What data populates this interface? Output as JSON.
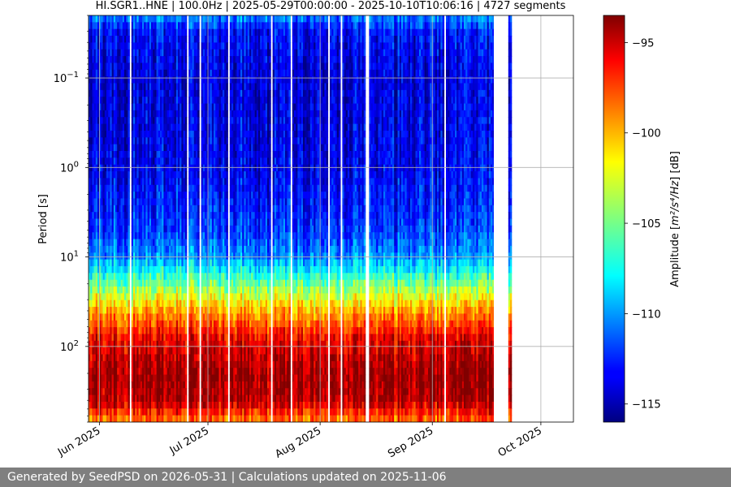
{
  "footer": {
    "text": "Generated by SeedPSD on 2026-05-31 | Calculations updated on 2025-11-06"
  },
  "chart_data": {
    "type": "heatmap",
    "title": "HI.SGR1..HNE | 100.0Hz | 2025-05-29T00:00:00 - 2025-10-10T10:06:16 | 4727 segments",
    "xlabel": "",
    "ylabel": "Period [s]",
    "x_scale": "time",
    "y_scale": "log",
    "y_inverted": true,
    "xlim": [
      "2025-05-29",
      "2025-10-10"
    ],
    "ylim_period_s": [
      0.02,
      700
    ],
    "x_ticks": [
      {
        "date": "2025-06-01",
        "label": "Jun 2025"
      },
      {
        "date": "2025-07-01",
        "label": "Jul 2025"
      },
      {
        "date": "2025-08-01",
        "label": "Aug 2025"
      },
      {
        "date": "2025-09-01",
        "label": "Sep 2025"
      },
      {
        "date": "2025-10-01",
        "label": "Oct 2025"
      }
    ],
    "y_ticks": [
      {
        "value": 0.1,
        "base": "10",
        "exp": "−1"
      },
      {
        "value": 1,
        "base": "10",
        "exp": "0"
      },
      {
        "value": 10,
        "base": "10",
        "exp": "1"
      },
      {
        "value": 100,
        "base": "10",
        "exp": "2"
      }
    ],
    "grid": true,
    "data_coverage": [
      {
        "start": "2025-05-29",
        "end": "2025-09-18"
      },
      {
        "start": "2025-09-22",
        "end": "2025-09-23"
      }
    ],
    "colorbar": {
      "label_text": "Amplitude [",
      "label_math": "m²/s⁴/Hz",
      "label_unit": "] [dB]",
      "colormap": "jet",
      "range": [
        -116,
        -93.5
      ],
      "ticks": [
        {
          "value": -95,
          "label": "−95"
        },
        {
          "value": -100,
          "label": "−100"
        },
        {
          "value": -105,
          "label": "−105"
        },
        {
          "value": -110,
          "label": "−110"
        },
        {
          "value": -115,
          "label": "−115"
        }
      ]
    },
    "amplitude_profile_by_period": [
      {
        "period_s": 0.02,
        "db": -110
      },
      {
        "period_s": 0.03,
        "db": -113
      },
      {
        "period_s": 0.1,
        "db": -114
      },
      {
        "period_s": 1,
        "db": -113.5
      },
      {
        "period_s": 5,
        "db": -112
      },
      {
        "period_s": 10,
        "db": -110
      },
      {
        "period_s": 20,
        "db": -105
      },
      {
        "period_s": 40,
        "db": -100
      },
      {
        "period_s": 80,
        "db": -96
      },
      {
        "period_s": 200,
        "db": -94
      },
      {
        "period_s": 400,
        "db": -94.5
      },
      {
        "period_s": 700,
        "db": -99
      }
    ]
  }
}
